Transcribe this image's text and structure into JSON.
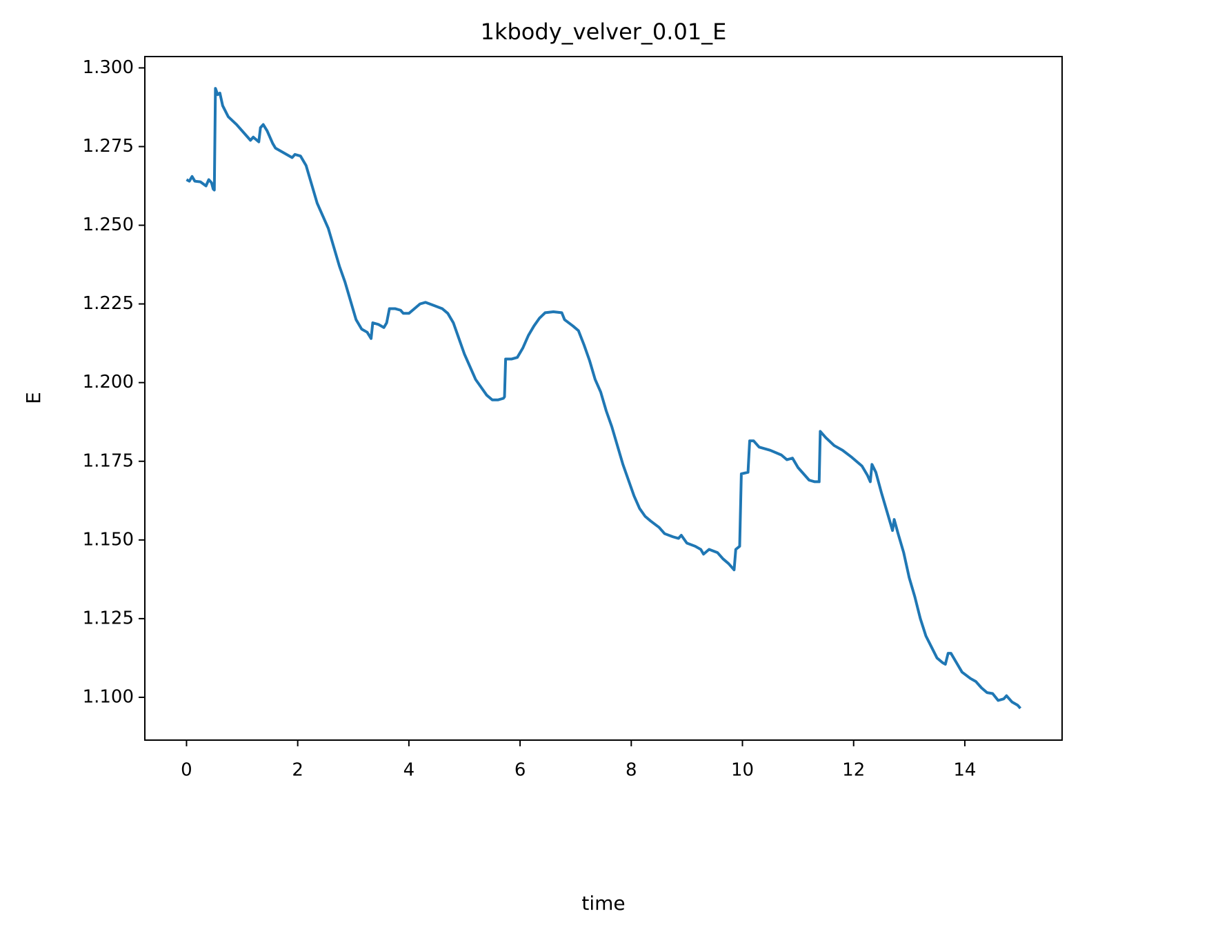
{
  "chart_data": {
    "type": "line",
    "title": "1kbody_velver_0.01_E",
    "x_label": "time",
    "y_label": "E",
    "color": "#1f77b4",
    "x": [
      0,
      0.05,
      0.1,
      0.15,
      0.25,
      0.35,
      0.4,
      0.45,
      0.48,
      0.5,
      0.52,
      0.56,
      0.6,
      0.65,
      0.75,
      0.9,
      1.05,
      1.15,
      1.2,
      1.3,
      1.33,
      1.38,
      1.45,
      1.55,
      1.6,
      1.75,
      1.9,
      1.95,
      2.05,
      2.15,
      2.25,
      2.35,
      2.45,
      2.55,
      2.65,
      2.75,
      2.85,
      2.95,
      3.05,
      3.15,
      3.25,
      3.32,
      3.35,
      3.45,
      3.55,
      3.6,
      3.65,
      3.75,
      3.85,
      3.9,
      4.0,
      4.1,
      4.2,
      4.3,
      4.45,
      4.6,
      4.7,
      4.8,
      4.9,
      5.0,
      5.1,
      5.2,
      5.3,
      5.4,
      5.5,
      5.6,
      5.7,
      5.72,
      5.74,
      5.85,
      5.95,
      6.05,
      6.15,
      6.25,
      6.35,
      6.45,
      6.6,
      6.75,
      6.8,
      6.95,
      7.05,
      7.15,
      7.25,
      7.35,
      7.45,
      7.55,
      7.65,
      7.75,
      7.85,
      7.95,
      8.05,
      8.15,
      8.25,
      8.35,
      8.5,
      8.6,
      8.75,
      8.85,
      8.9,
      9.0,
      9.15,
      9.25,
      9.3,
      9.4,
      9.55,
      9.65,
      9.75,
      9.85,
      9.88,
      9.95,
      9.98,
      10.1,
      10.13,
      10.2,
      10.3,
      10.5,
      10.7,
      10.8,
      10.9,
      11.0,
      11.1,
      11.2,
      11.3,
      11.38,
      11.4,
      11.5,
      11.65,
      11.8,
      11.95,
      12.05,
      12.15,
      12.25,
      12.3,
      12.33,
      12.4,
      12.5,
      12.6,
      12.7,
      12.73,
      12.8,
      12.9,
      13.0,
      13.1,
      13.2,
      13.3,
      13.4,
      13.5,
      13.6,
      13.65,
      13.7,
      13.75,
      13.85,
      13.95,
      14.1,
      14.2,
      14.3,
      14.4,
      14.5,
      14.6,
      14.7,
      14.75,
      14.85,
      14.95,
      15.0
    ],
    "values": [
      1.2645,
      1.264,
      1.2655,
      1.264,
      1.2638,
      1.2625,
      1.2645,
      1.2635,
      1.2615,
      1.2612,
      1.2935,
      1.2915,
      1.292,
      1.288,
      1.2845,
      1.282,
      1.279,
      1.277,
      1.278,
      1.2765,
      1.281,
      1.282,
      1.28,
      1.276,
      1.2745,
      1.273,
      1.2715,
      1.2725,
      1.272,
      1.269,
      1.263,
      1.257,
      1.253,
      1.249,
      1.243,
      1.237,
      1.232,
      1.226,
      1.22,
      1.217,
      1.216,
      1.214,
      1.219,
      1.2185,
      1.2175,
      1.219,
      1.2235,
      1.2235,
      1.223,
      1.222,
      1.222,
      1.2235,
      1.225,
      1.2255,
      1.2245,
      1.2235,
      1.222,
      1.219,
      1.214,
      1.209,
      1.205,
      1.201,
      1.1985,
      1.196,
      1.1945,
      1.1945,
      1.195,
      1.1955,
      1.2075,
      1.2075,
      1.208,
      1.211,
      1.215,
      1.218,
      1.2205,
      1.2222,
      1.2225,
      1.2222,
      1.22,
      1.218,
      1.2165,
      1.212,
      1.207,
      1.201,
      1.197,
      1.191,
      1.186,
      1.18,
      1.174,
      1.169,
      1.164,
      1.16,
      1.1575,
      1.156,
      1.154,
      1.152,
      1.151,
      1.1505,
      1.1515,
      1.149,
      1.148,
      1.147,
      1.1455,
      1.147,
      1.146,
      1.144,
      1.1425,
      1.1405,
      1.147,
      1.148,
      1.171,
      1.1715,
      1.1815,
      1.1815,
      1.1795,
      1.1785,
      1.177,
      1.1755,
      1.176,
      1.173,
      1.171,
      1.169,
      1.1685,
      1.1685,
      1.1845,
      1.1825,
      1.18,
      1.1785,
      1.1765,
      1.175,
      1.1735,
      1.1705,
      1.1685,
      1.174,
      1.1715,
      1.165,
      1.159,
      1.153,
      1.1565,
      1.152,
      1.146,
      1.138,
      1.132,
      1.125,
      1.1195,
      1.116,
      1.1125,
      1.111,
      1.1105,
      1.114,
      1.114,
      1.111,
      1.108,
      1.106,
      1.105,
      1.103,
      1.1015,
      1.1012,
      1.099,
      1.0995,
      1.1005,
      1.0985,
      1.0975,
      1.0965
    ],
    "xlim": [
      -0.75,
      15.75
    ],
    "xticks": [
      0,
      2,
      4,
      6,
      8,
      10,
      12,
      14
    ],
    "ylim": [
      1.0864,
      1.3036
    ],
    "yticks": [
      {
        "value": 1.1,
        "label": "1.100"
      },
      {
        "value": 1.125,
        "label": "1.125"
      },
      {
        "value": 1.15,
        "label": "1.150"
      },
      {
        "value": 1.175,
        "label": "1.175"
      },
      {
        "value": 1.2,
        "label": "1.200"
      },
      {
        "value": 1.225,
        "label": "1.225"
      },
      {
        "value": 1.25,
        "label": "1.250"
      },
      {
        "value": 1.275,
        "label": "1.275"
      },
      {
        "value": 1.3,
        "label": "1.300"
      }
    ]
  }
}
